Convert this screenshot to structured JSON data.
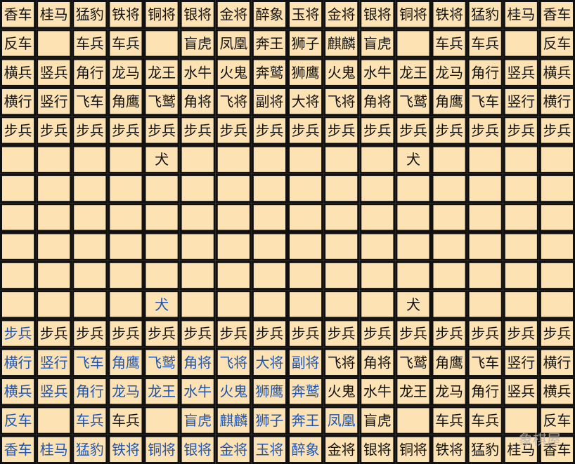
{
  "board": {
    "rows": [
      [
        "香车",
        "桂马",
        "猛豹",
        "铁将",
        "铜将",
        "银将",
        "金将",
        "醉象",
        "玉将",
        "金将",
        "银将",
        "铜将",
        "铁将",
        "猛豹",
        "桂马",
        "香车"
      ],
      [
        "反车",
        null,
        "车兵",
        "车兵",
        null,
        "盲虎",
        "凤凰",
        "奔王",
        "狮子",
        "麒麟",
        "盲虎",
        null,
        "车兵",
        "车兵",
        null,
        "反车"
      ],
      [
        "横兵",
        "竖兵",
        "角行",
        "龙马",
        "龙王",
        "水牛",
        "火鬼",
        "奔鹫",
        "狮鹰",
        "火鬼",
        "水牛",
        "龙王",
        "龙马",
        "角行",
        "竖兵",
        "横兵"
      ],
      [
        "横行",
        "竖行",
        "飞车",
        "角鹰",
        "飞鹫",
        "角将",
        "飞将",
        "副将",
        "大将",
        "飞将",
        "角将",
        "飞鹫",
        "角鹰",
        "飞车",
        "竖行",
        "横行"
      ],
      [
        "步兵",
        "步兵",
        "步兵",
        "步兵",
        "步兵",
        "步兵",
        "步兵",
        "步兵",
        "步兵",
        "步兵",
        "步兵",
        "步兵",
        "步兵",
        "步兵",
        "步兵",
        "步兵"
      ],
      [
        null,
        null,
        null,
        null,
        "犬",
        null,
        null,
        null,
        null,
        null,
        null,
        "犬",
        null,
        null,
        null,
        null
      ],
      [
        null,
        null,
        null,
        null,
        null,
        null,
        null,
        null,
        null,
        null,
        null,
        null,
        null,
        null,
        null,
        null
      ],
      [
        null,
        null,
        null,
        null,
        null,
        null,
        null,
        null,
        null,
        null,
        null,
        null,
        null,
        null,
        null,
        null
      ],
      [
        null,
        null,
        null,
        null,
        null,
        null,
        null,
        null,
        null,
        null,
        null,
        null,
        null,
        null,
        null,
        null
      ],
      [
        null,
        null,
        null,
        null,
        null,
        null,
        null,
        null,
        null,
        null,
        null,
        null,
        null,
        null,
        null,
        null
      ],
      [
        null,
        null,
        null,
        null,
        {
          "text": "犬",
          "color": "#1f55b0"
        },
        null,
        null,
        null,
        null,
        null,
        null,
        "犬",
        null,
        null,
        null,
        null
      ],
      [
        {
          "text": "步兵",
          "color": "#1f55b0"
        },
        "步兵",
        "步兵",
        "步兵",
        "步兵",
        "步兵",
        "步兵",
        "步兵",
        "步兵",
        "步兵",
        "步兵",
        "步兵",
        "步兵",
        "步兵",
        "步兵",
        "步兵"
      ],
      [
        {
          "text": "横行",
          "color": "#1f55b0"
        },
        {
          "text": "竖行",
          "color": "#1f55b0"
        },
        {
          "text": "飞车",
          "color": "#1f55b0"
        },
        {
          "text": "角鹰",
          "color": "#1f55b0"
        },
        {
          "text": "飞鹫",
          "color": "#1f55b0"
        },
        {
          "text": "角将",
          "color": "#1f55b0"
        },
        {
          "text": "飞将",
          "color": "#1f55b0"
        },
        {
          "text": "大将",
          "color": "#1f55b0"
        },
        {
          "text": "副将",
          "color": "#1f55b0"
        },
        "飞将",
        "角将",
        "飞鹫",
        "角鹰",
        "飞车",
        "竖行",
        "横行"
      ],
      [
        {
          "text": "横兵",
          "color": "#1f55b0"
        },
        {
          "text": "竖兵",
          "color": "#1f55b0"
        },
        {
          "text": "角行",
          "color": "#1f55b0"
        },
        {
          "text": "龙马",
          "color": "#1f55b0"
        },
        {
          "text": "龙王",
          "color": "#1f55b0"
        },
        {
          "text": "水牛",
          "color": "#1f55b0"
        },
        {
          "text": "火鬼",
          "color": "#1f55b0"
        },
        {
          "text": "狮鹰",
          "color": "#1f55b0"
        },
        {
          "text": "奔鹫",
          "color": "#1f55b0"
        },
        "火鬼",
        "水牛",
        "龙王",
        "龙马",
        "角行",
        "竖兵",
        "横兵"
      ],
      [
        {
          "text": "反车",
          "color": "#1f55b0"
        },
        null,
        {
          "text": "车兵",
          "color": "#1f55b0"
        },
        "车兵",
        null,
        {
          "text": "盲虎",
          "color": "#1f55b0"
        },
        {
          "text": "麒麟",
          "color": "#1f55b0"
        },
        {
          "text": "狮子",
          "color": "#1f55b0"
        },
        {
          "text": "奔王",
          "color": "#1f55b0"
        },
        {
          "text": "凤凰",
          "color": "#1f55b0"
        },
        "盲虎",
        null,
        "车兵",
        "车兵",
        null,
        "反车"
      ],
      [
        {
          "text": "香车",
          "color": "#1f55b0"
        },
        {
          "text": "桂马",
          "color": "#1f55b0"
        },
        {
          "text": "猛豹",
          "color": "#1f55b0"
        },
        {
          "text": "铁将",
          "color": "#1f55b0"
        },
        {
          "text": "铜将",
          "color": "#1f55b0"
        },
        {
          "text": "银将",
          "color": "#1f55b0"
        },
        {
          "text": "金将",
          "color": "#1f55b0"
        },
        {
          "text": "玉将",
          "color": "#1f55b0"
        },
        {
          "text": "醉象",
          "color": "#1f55b0"
        },
        "金将",
        "银将",
        "铜将",
        "铁将",
        "猛豹",
        "桂马",
        "香车"
      ]
    ],
    "watermark": "象棋屋"
  }
}
